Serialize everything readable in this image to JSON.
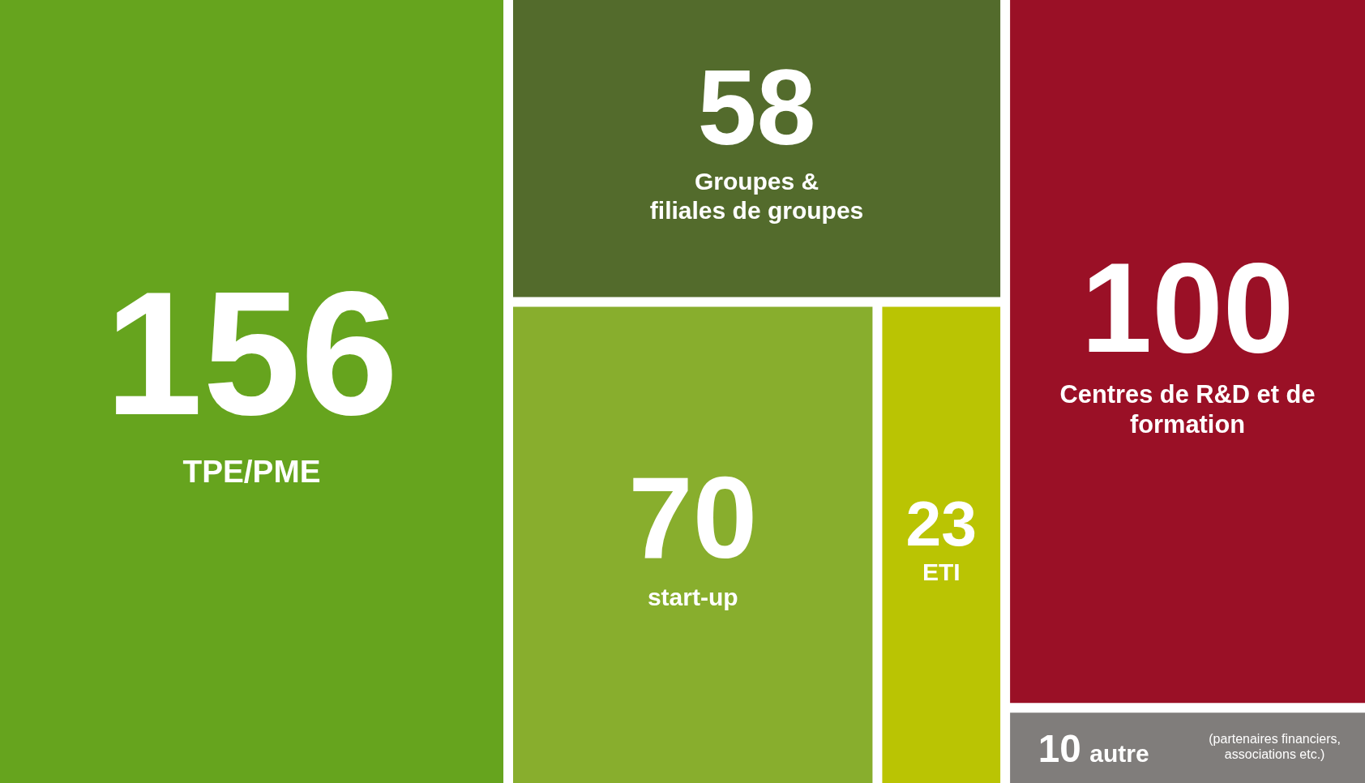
{
  "chart_data": {
    "type": "other",
    "categories": [
      "TPE/PME",
      "Groupes &\nfiliales de groupes",
      "start-up",
      "ETI",
      "Centres de R&D et de\nformation",
      "autre"
    ],
    "values": [
      156,
      58,
      70,
      23,
      100,
      10
    ],
    "colors": [
      "#66a41e",
      "#536b2c",
      "#88ae2d",
      "#bac403",
      "#9a1026",
      "#807d7b"
    ],
    "data_labels": true,
    "annotations": [
      "(partenaires financiers,\nassociations etc.)"
    ]
  }
}
